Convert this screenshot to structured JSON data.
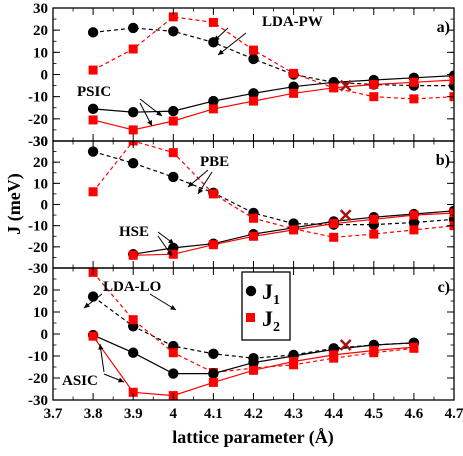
{
  "chart_data": {
    "type": "line",
    "xlabel": "lattice parameter (Å)",
    "ylabel": "J  (meV)",
    "x_ticks": [
      "3.7",
      "3.8",
      "3.9",
      "4",
      "4.1",
      "4.2",
      "4.3",
      "4.4",
      "4.5",
      "4.6",
      "4.7"
    ],
    "xlim": [
      3.7,
      4.7
    ],
    "legend": {
      "position": "right-center",
      "entries": [
        "J1",
        "J2"
      ],
      "colors": [
        "#000000",
        "#ff0000"
      ]
    },
    "panels": [
      {
        "tag": "a)",
        "ylim": [
          -30,
          30
        ],
        "yticks": [
          "30",
          "20",
          "10",
          "0",
          "-10",
          "-20",
          "-30"
        ],
        "labels": [
          "LDA-PW",
          "PSIC"
        ],
        "series": [
          {
            "label_group": "LDA-PW",
            "kind": "J1",
            "style": "dashed",
            "color": "#000000",
            "x": [
              3.8,
              3.9,
              4.0,
              4.1,
              4.2,
              4.3,
              4.4,
              4.5,
              4.6,
              4.7
            ],
            "y": [
              19,
              21,
              19.5,
              14.5,
              7,
              0,
              -3.5,
              -4.5,
              -5,
              -5
            ]
          },
          {
            "label_group": "LDA-PW",
            "kind": "J2",
            "style": "dashed",
            "color": "#ff0000",
            "x": [
              3.8,
              3.9,
              4.0,
              4.1,
              4.2,
              4.3,
              4.4,
              4.5,
              4.6,
              4.7
            ],
            "y": [
              2,
              11.5,
              26,
              23.5,
              11,
              0.5,
              -6,
              -10,
              -11,
              -10
            ]
          },
          {
            "label_group": "PSIC",
            "kind": "J1",
            "style": "solid",
            "color": "#000000",
            "x": [
              3.8,
              3.9,
              4.0,
              4.1,
              4.2,
              4.3,
              4.4,
              4.5,
              4.6,
              4.7
            ],
            "y": [
              -15.5,
              -17,
              -16.5,
              -12,
              -8.5,
              -5.5,
              -3.5,
              -2.5,
              -1.5,
              -0.5
            ]
          },
          {
            "label_group": "PSIC",
            "kind": "J2",
            "style": "solid",
            "color": "#ff0000",
            "x": [
              3.8,
              3.9,
              4.0,
              4.1,
              4.2,
              4.3,
              4.4,
              4.5,
              4.6,
              4.7
            ],
            "y": [
              -20.5,
              -25,
              -21,
              -15.5,
              -12,
              -8.5,
              -6,
              -4.5,
              -3.5,
              -2.5
            ]
          }
        ],
        "crosses": [
          {
            "x": 4.43,
            "y": -5
          }
        ]
      },
      {
        "tag": "b)",
        "ylim": [
          -30,
          30
        ],
        "yticks": [
          "30",
          "20",
          "10",
          "0",
          "-10",
          "-20",
          "-30"
        ],
        "labels": [
          "PBE",
          "HSE"
        ],
        "series": [
          {
            "label_group": "PBE",
            "kind": "J1",
            "style": "dashed",
            "color": "#000000",
            "x": [
              3.8,
              3.9,
              4.0,
              4.1,
              4.2,
              4.3,
              4.4,
              4.5,
              4.6,
              4.7
            ],
            "y": [
              25,
              19.5,
              13,
              5.5,
              -4,
              -9,
              -9.5,
              -9.5,
              -8.5,
              -7
            ]
          },
          {
            "label_group": "PBE",
            "kind": "J2",
            "style": "dashed",
            "color": "#ff0000",
            "x": [
              3.8,
              3.9,
              4.0,
              4.1,
              4.2,
              4.3,
              4.4,
              4.5,
              4.6,
              4.7
            ],
            "y": [
              6,
              30,
              24.5,
              5,
              -6.5,
              -11.5,
              -15.5,
              -14,
              -12,
              -10
            ]
          },
          {
            "label_group": "HSE",
            "kind": "J1",
            "style": "solid",
            "color": "#000000",
            "x": [
              3.9,
              4.0,
              4.1,
              4.2,
              4.3,
              4.4,
              4.5,
              4.6,
              4.7
            ],
            "y": [
              -23.5,
              -20.5,
              -18.5,
              -14,
              -11,
              -8,
              -6,
              -4.5,
              -3
            ]
          },
          {
            "label_group": "HSE",
            "kind": "J2",
            "style": "solid",
            "color": "#ff0000",
            "x": [
              3.9,
              4.0,
              4.1,
              4.2,
              4.3,
              4.4,
              4.5,
              4.6,
              4.7
            ],
            "y": [
              -24,
              -23.5,
              -19,
              -15,
              -12,
              -9,
              -7,
              -5,
              -4
            ]
          }
        ],
        "crosses": [
          {
            "x": 4.43,
            "y": -5
          }
        ]
      },
      {
        "tag": "c)",
        "ylim": [
          -30,
          30
        ],
        "yticks": [
          "20",
          "10",
          "0",
          "-10",
          "-20",
          "-30"
        ],
        "labels": [
          "LDA-LO",
          "ASIC"
        ],
        "series": [
          {
            "label_group": "LDA-LO",
            "kind": "J1",
            "style": "dashed",
            "color": "#000000",
            "x": [
              3.8,
              3.9,
              4.0,
              4.1,
              4.2,
              4.3,
              4.4,
              4.5,
              4.6
            ],
            "y": [
              17,
              3.5,
              -5.5,
              -9,
              -11,
              -9.5,
              -6.5,
              -5,
              -4
            ]
          },
          {
            "label_group": "LDA-LO",
            "kind": "J2",
            "style": "dashed",
            "color": "#ff0000",
            "x": [
              3.8,
              3.9,
              4.0,
              4.1,
              4.2,
              4.3,
              4.4,
              4.5,
              4.6
            ],
            "y": [
              28,
              6.5,
              -8.5,
              -17.5,
              -15.5,
              -14,
              -11,
              -8.5,
              -6.5
            ]
          },
          {
            "label_group": "ASIC",
            "kind": "J1",
            "style": "solid",
            "color": "#000000",
            "x": [
              3.8,
              3.9,
              4.0,
              4.1,
              4.2,
              4.3,
              4.4,
              4.5,
              4.6
            ],
            "y": [
              -0.5,
              -8.5,
              -18,
              -18,
              -13,
              -10,
              -7,
              -5,
              -4
            ]
          },
          {
            "label_group": "ASIC",
            "kind": "J2",
            "style": "solid",
            "color": "#ff0000",
            "x": [
              3.8,
              3.9,
              4.0,
              4.1,
              4.2,
              4.3,
              4.4,
              4.5,
              4.6
            ],
            "y": [
              -1,
              -26.5,
              -28,
              -22,
              -16.5,
              -12.5,
              -9.5,
              -7.5,
              -6
            ]
          }
        ],
        "crosses": [
          {
            "x": 4.43,
            "y": -5
          }
        ]
      }
    ]
  }
}
